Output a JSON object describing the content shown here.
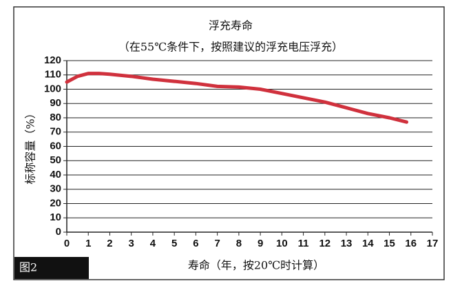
{
  "chart_data": {
    "type": "line",
    "title": "浮充寿命",
    "subtitle": "（在55℃条件下，按照建议的浮充电压浮充）",
    "y_label": "标称容量（%）",
    "x_label": "寿命（年，按20℃时计算）",
    "figure_label": "图2",
    "x": [
      0,
      0.5,
      1,
      1.5,
      2,
      3,
      4,
      5,
      6,
      7,
      8,
      9,
      10,
      11,
      12,
      13,
      14,
      15,
      15.8
    ],
    "values": [
      105,
      109,
      111,
      111,
      110.5,
      109,
      107,
      105.5,
      104,
      102,
      101.5,
      100,
      97,
      94,
      91,
      87,
      83,
      80,
      77
    ],
    "color": "#d0313d",
    "xlim": [
      0,
      17
    ],
    "xticks": [
      0,
      1,
      2,
      3,
      4,
      5,
      6,
      7,
      8,
      9,
      10,
      11,
      12,
      13,
      14,
      15,
      16,
      17
    ],
    "ylim": [
      0,
      120
    ],
    "yticks": [
      0,
      10,
      20,
      30,
      40,
      50,
      60,
      70,
      80,
      90,
      100,
      110,
      120
    ],
    "grid": true
  }
}
